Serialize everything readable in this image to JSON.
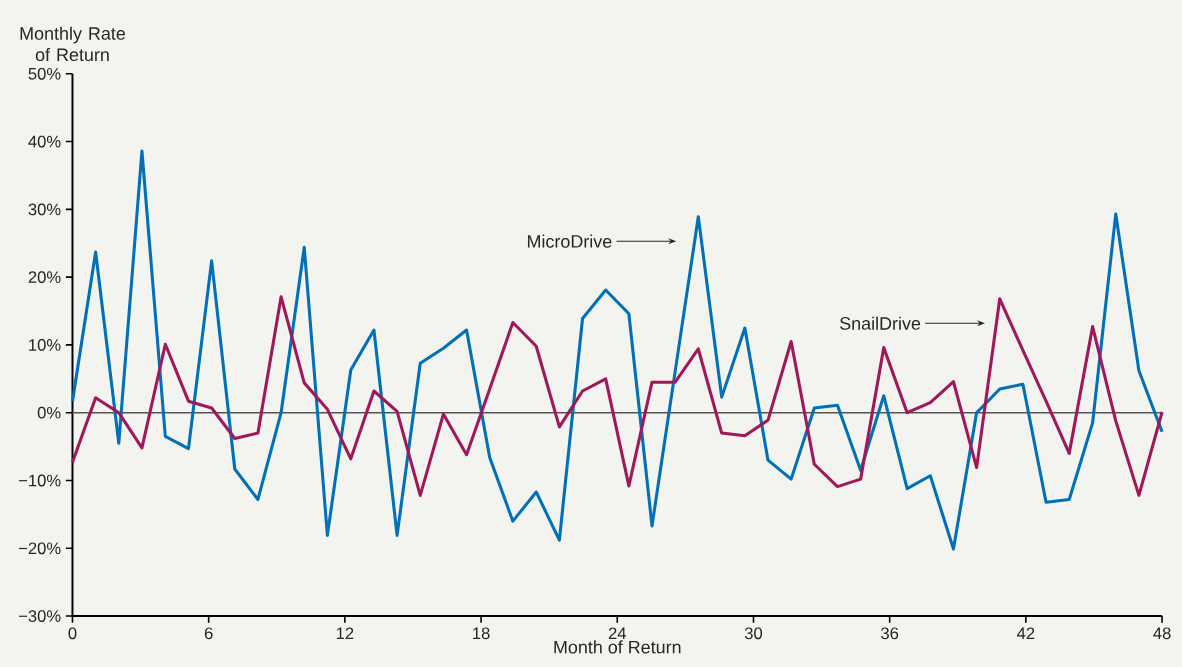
{
  "chart_data": {
    "type": "line",
    "xlabel": "Month of Return",
    "ylabel": "Monthly Rate of Return",
    "xlim": [
      0,
      48
    ],
    "ylim": [
      -30,
      50
    ],
    "xticks": [
      0,
      6,
      12,
      18,
      24,
      30,
      36,
      42,
      48
    ],
    "yticks": [
      {
        "value": -30,
        "label": "−30%"
      },
      {
        "value": -20,
        "label": "−20%"
      },
      {
        "value": -10,
        "label": "−10%"
      },
      {
        "value": 0,
        "label": "0%"
      },
      {
        "value": 10,
        "label": "10%"
      },
      {
        "value": 20,
        "label": "20%"
      },
      {
        "value": 30,
        "label": "30%"
      },
      {
        "value": 40,
        "label": "40%"
      },
      {
        "value": 50,
        "label": "50%"
      }
    ],
    "ref_lines": [
      {
        "axis": "y",
        "value": 0,
        "color": "#555555"
      }
    ],
    "series": [
      {
        "name": "MicroDrive",
        "color": "#0070b8",
        "x": [
          0,
          1.02,
          2.04,
          3.06,
          4.09,
          5.11,
          6.13,
          7.15,
          8.17,
          9.19,
          10.21,
          11.23,
          12.26,
          13.28,
          14.3,
          15.32,
          16.34,
          17.36,
          18.38,
          19.4,
          20.43,
          21.45,
          22.47,
          23.49,
          24.51,
          25.53,
          26.55,
          27.57,
          28.6,
          29.62,
          30.64,
          31.66,
          32.68,
          33.7,
          34.72,
          35.74,
          36.77,
          37.79,
          38.81,
          39.83,
          40.85,
          41.87,
          42.89,
          43.91,
          44.94,
          45.96,
          46.98,
          48
        ],
        "values": [
          1.7,
          23.7,
          -4.5,
          38.6,
          -3.5,
          -5.3,
          22.4,
          -8.3,
          -12.8,
          0,
          24.4,
          -18.1,
          6.3,
          12.2,
          -18.1,
          7.3,
          9.5,
          12.2,
          -6.6,
          -16.0,
          -11.7,
          -18.8,
          13.9,
          18.1,
          14.6,
          -16.7,
          6.1,
          28.9,
          2.3,
          12.5,
          -7.0,
          -9.8,
          0.7,
          1.1,
          -8.5,
          2.5,
          -11.2,
          -9.3,
          -20.1,
          0,
          3.5,
          4.2,
          -13.2,
          -12.8,
          -1.5,
          29.3,
          6.2,
          -2.8
        ]
      },
      {
        "name": "SnailDrive",
        "color": "#a0185a",
        "x": [
          0,
          1.02,
          2.04,
          3.06,
          4.09,
          5.11,
          6.13,
          7.15,
          8.17,
          9.19,
          10.21,
          11.23,
          12.26,
          13.28,
          14.3,
          15.32,
          16.34,
          17.36,
          18.38,
          19.4,
          20.43,
          21.45,
          22.47,
          23.49,
          24.51,
          25.53,
          26.55,
          27.57,
          28.6,
          29.62,
          30.64,
          31.66,
          32.68,
          33.7,
          34.72,
          35.74,
          36.77,
          37.79,
          38.81,
          39.83,
          40.85,
          41.87,
          42.89,
          43.91,
          44.94,
          45.96,
          46.98,
          48
        ],
        "values": [
          -7.3,
          2.2,
          0,
          -5.2,
          10.1,
          1.7,
          0.7,
          -3.8,
          -3.0,
          17.1,
          4.4,
          0.5,
          -6.8,
          3.2,
          0.2,
          -12.2,
          -0.2,
          -6.2,
          3.5,
          13.3,
          9.8,
          -2.1,
          3.2,
          5.0,
          -10.8,
          4.5,
          4.5,
          9.4,
          -3.0,
          -3.4,
          -1.1,
          10.5,
          -7.6,
          -10.9,
          -9.8,
          9.6,
          0,
          1.5,
          4.6,
          -8.1,
          16.8,
          9.2,
          1.7,
          -6.0,
          12.7,
          -1.2,
          -12.2,
          0.1
        ]
      }
    ]
  }
}
